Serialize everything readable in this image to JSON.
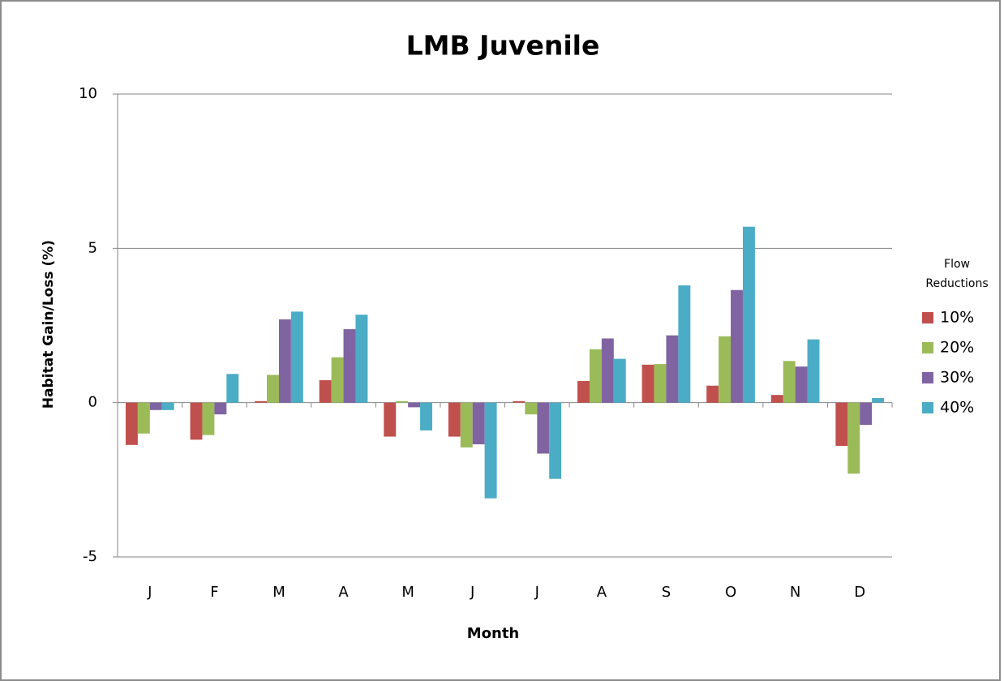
{
  "chart_data": {
    "type": "bar",
    "title": "LMB Juvenile",
    "x_label": "Month",
    "y_label": "Habitat Gain/Loss (%)",
    "legend_title": "Flow Reductions",
    "legend_position": "right",
    "grid": true,
    "categories": [
      "J",
      "F",
      "M",
      "A",
      "M",
      "J",
      "J",
      "A",
      "S",
      "O",
      "N",
      "D"
    ],
    "ylim": [
      -5,
      10
    ],
    "yticks": [
      -5,
      0,
      5,
      10
    ],
    "series": [
      {
        "name": "10%",
        "color": "#c0504d",
        "values": [
          -1.37,
          -1.2,
          0.05,
          0.73,
          -1.1,
          -1.1,
          0.05,
          0.7,
          1.23,
          0.55,
          0.25,
          -1.4
        ]
      },
      {
        "name": "20%",
        "color": "#9bbb59",
        "values": [
          -1.0,
          -1.05,
          0.9,
          1.47,
          0.05,
          -1.45,
          -0.38,
          1.73,
          1.25,
          2.15,
          1.35,
          -2.3
        ]
      },
      {
        "name": "30%",
        "color": "#8064a2",
        "values": [
          -0.24,
          -0.38,
          2.7,
          2.38,
          -0.15,
          -1.35,
          -1.65,
          2.08,
          2.18,
          3.65,
          1.17,
          -0.72
        ]
      },
      {
        "name": "40%",
        "color": "#4bacc6",
        "values": [
          -0.24,
          0.93,
          2.95,
          2.85,
          -0.9,
          -3.1,
          -2.47,
          1.42,
          3.8,
          5.7,
          2.05,
          0.15
        ]
      }
    ]
  }
}
